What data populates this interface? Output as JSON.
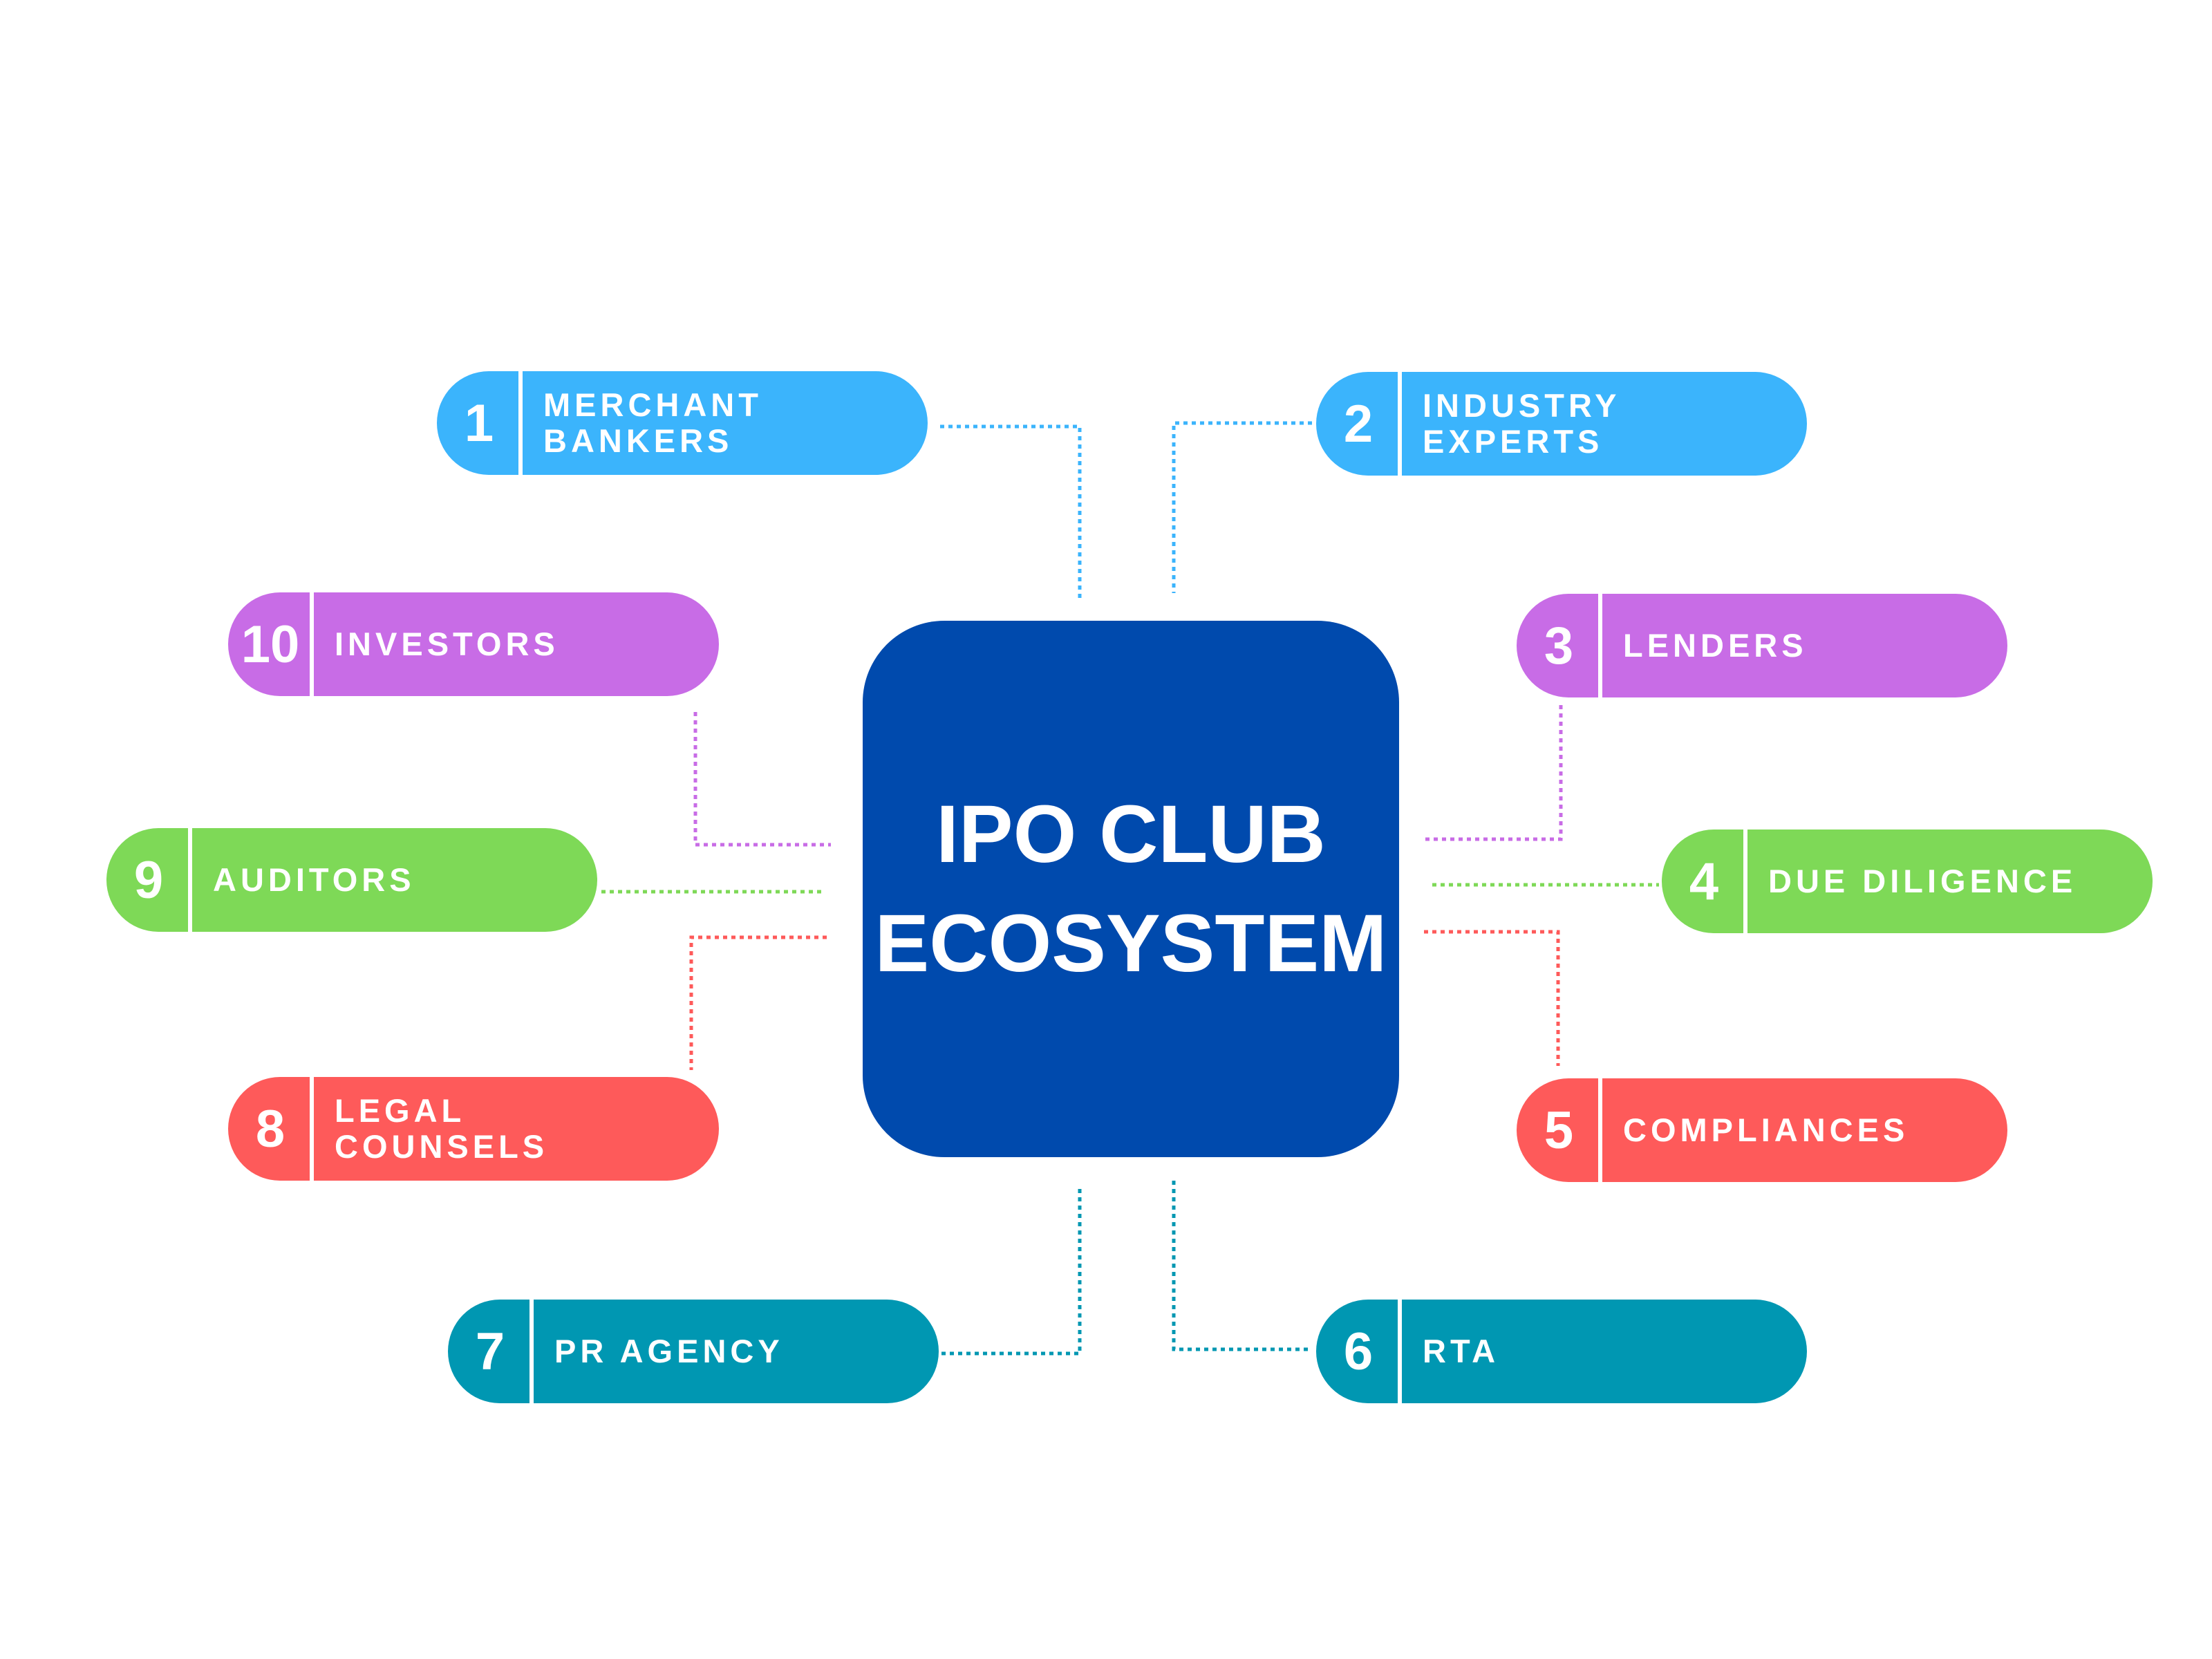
{
  "hub": {
    "line1": "IPO CLUB",
    "line2": "ECOSYSTEM",
    "color": "#004aad"
  },
  "colors": {
    "blue": "#3bb4fc",
    "purple": "#c86ce6",
    "green": "#7ed957",
    "red": "#fe5a5a",
    "teal": "#0097b2"
  },
  "nodes": [
    {
      "number": "1",
      "line1": "MERCHANT",
      "line2": "BANKERS",
      "color": "blue"
    },
    {
      "number": "2",
      "line1": "INDUSTRY",
      "line2": "EXPERTS",
      "color": "blue"
    },
    {
      "number": "3",
      "line1": "LENDERS",
      "line2": "",
      "color": "purple"
    },
    {
      "number": "4",
      "line1": "DUE DILIGENCE",
      "line2": "",
      "color": "green"
    },
    {
      "number": "5",
      "line1": "COMPLIANCES",
      "line2": "",
      "color": "red"
    },
    {
      "number": "6",
      "line1": "RTA",
      "line2": "",
      "color": "teal"
    },
    {
      "number": "7",
      "line1": "PR AGENCY",
      "line2": "",
      "color": "teal"
    },
    {
      "number": "8",
      "line1": "LEGAL",
      "line2": "COUNSELS",
      "color": "red"
    },
    {
      "number": "9",
      "line1": "AUDITORS",
      "line2": "",
      "color": "green"
    },
    {
      "number": "10",
      "line1": "INVESTORS",
      "line2": "",
      "color": "purple"
    }
  ]
}
